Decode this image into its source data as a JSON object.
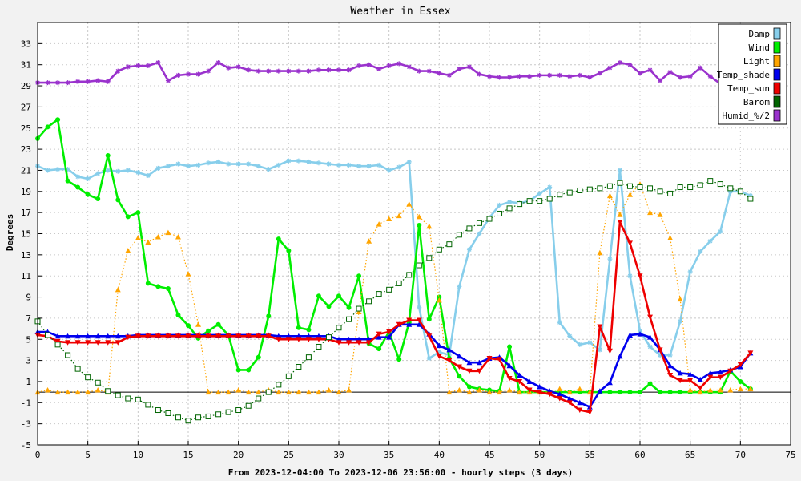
{
  "chart_data": {
    "type": "line",
    "title": "Weather in Essex",
    "xlabel": "From 2023-12-04:00 To 2023-12-06 23:56:00 - hourly steps (3 days)",
    "ylabel": "Degrees",
    "xlim": [
      0,
      75
    ],
    "ylim": [
      -5,
      35
    ],
    "xticks": [
      0,
      5,
      10,
      15,
      20,
      25,
      30,
      35,
      40,
      45,
      50,
      55,
      60,
      65,
      70,
      75
    ],
    "yticks": [
      -5,
      -3,
      -1,
      1,
      3,
      5,
      7,
      9,
      11,
      13,
      15,
      17,
      19,
      21,
      23,
      25,
      27,
      29,
      31,
      33
    ],
    "grid": true,
    "legend_position": "top-right",
    "series": [
      {
        "name": "Damp",
        "color": "#87ceeb",
        "style": "line",
        "marker": "star",
        "y": [
          21.4,
          21.0,
          21.1,
          21.1,
          20.4,
          20.2,
          20.7,
          21.0,
          20.9,
          21.0,
          20.8,
          20.5,
          21.2,
          21.4,
          21.6,
          21.4,
          21.5,
          21.7,
          21.8,
          21.6,
          21.6,
          21.6,
          21.4,
          21.1,
          21.5,
          21.9,
          21.9,
          21.8,
          21.7,
          21.6,
          21.5,
          21.5,
          21.4,
          21.4,
          21.5,
          21.0,
          21.3,
          21.8,
          8.0,
          3.2,
          3.8,
          3.5,
          10.0,
          13.5,
          15.0,
          16.5,
          17.7,
          18.0,
          17.9,
          18.1,
          18.8,
          19.4,
          6.6,
          5.3,
          4.5,
          4.7,
          4.0,
          12.6,
          21.0,
          11.0,
          5.8,
          4.3,
          3.5,
          3.5,
          6.7,
          11.4,
          13.3,
          14.3,
          15.2,
          19.0,
          19.0,
          18.6
        ]
      },
      {
        "name": "Wind",
        "color": "#00ee00",
        "style": "line",
        "marker": "dot",
        "y": [
          24.0,
          25.1,
          25.8,
          20.0,
          19.4,
          18.7,
          18.3,
          22.4,
          18.2,
          16.6,
          17.0,
          10.3,
          10.0,
          9.8,
          7.3,
          6.3,
          5.1,
          5.8,
          6.4,
          5.4,
          2.1,
          2.1,
          3.3,
          7.2,
          14.5,
          13.4,
          6.1,
          5.9,
          9.1,
          8.1,
          9.1,
          8.0,
          11.0,
          4.6,
          4.1,
          5.7,
          3.1,
          6.6,
          15.8,
          6.9,
          9.0,
          3.2,
          1.5,
          0.5,
          0.3,
          0.2,
          0.1,
          4.3,
          0.0,
          0.0,
          0.0,
          0.0,
          0.0,
          0.0,
          0.0,
          0.0,
          0.0,
          0.0,
          0.0,
          0.0,
          0.0,
          0.8,
          0.0,
          0.0,
          0.0,
          0.0,
          0.0,
          0.0,
          0.0,
          2.0,
          1.0,
          0.3
        ]
      },
      {
        "name": "Light",
        "color": "#ffa500",
        "style": "dotted",
        "marker": "triangle",
        "y": [
          0.0,
          0.2,
          0.0,
          0.0,
          0.0,
          0.0,
          0.2,
          0.0,
          9.7,
          13.4,
          14.6,
          14.2,
          14.7,
          15.1,
          14.7,
          11.2,
          6.4,
          0.0,
          0.0,
          0.0,
          0.2,
          0.0,
          0.0,
          0.2,
          0.0,
          0.0,
          0.0,
          0.0,
          0.0,
          0.2,
          0.0,
          0.2,
          7.6,
          14.3,
          15.9,
          16.4,
          16.7,
          17.8,
          16.6,
          15.7,
          8.7,
          0.0,
          0.2,
          0.0,
          0.2,
          0.0,
          0.0,
          0.2,
          0.0,
          0.0,
          0.0,
          0.0,
          0.3,
          0.0,
          0.3,
          0.0,
          13.2,
          18.6,
          16.8,
          18.7,
          19.7,
          17.0,
          16.8,
          14.6,
          8.8,
          0.2,
          0.0,
          0.2,
          0.2,
          0.2,
          0.3,
          0.3
        ]
      },
      {
        "name": "Temp_shade",
        "color": "#0000ee",
        "style": "line",
        "marker": "triangle",
        "y": [
          5.7,
          5.7,
          5.3,
          5.3,
          5.3,
          5.3,
          5.3,
          5.3,
          5.3,
          5.3,
          5.4,
          5.4,
          5.4,
          5.4,
          5.4,
          5.4,
          5.4,
          5.4,
          5.4,
          5.4,
          5.4,
          5.4,
          5.4,
          5.4,
          5.3,
          5.3,
          5.3,
          5.3,
          5.3,
          5.3,
          5.0,
          5.0,
          5.0,
          5.0,
          5.2,
          5.2,
          6.4,
          6.4,
          6.4,
          5.5,
          4.4,
          4.0,
          3.4,
          2.8,
          2.8,
          3.2,
          3.3,
          2.5,
          1.6,
          1.0,
          0.5,
          0.1,
          -0.2,
          -0.6,
          -1.0,
          -1.4,
          0.1,
          0.9,
          3.4,
          5.4,
          5.5,
          5.2,
          4.0,
          2.5,
          1.8,
          1.7,
          1.2,
          1.8,
          1.9,
          2.1,
          2.4,
          3.7
        ]
      },
      {
        "name": "Temp_sun",
        "color": "#ee0000",
        "style": "line",
        "marker": "triangle-down",
        "y": [
          5.4,
          5.3,
          4.8,
          4.7,
          4.7,
          4.7,
          4.7,
          4.7,
          4.7,
          5.2,
          5.3,
          5.3,
          5.3,
          5.3,
          5.3,
          5.3,
          5.3,
          5.3,
          5.3,
          5.3,
          5.3,
          5.3,
          5.3,
          5.3,
          5.0,
          5.0,
          5.0,
          5.0,
          5.0,
          5.0,
          4.7,
          4.7,
          4.7,
          4.7,
          5.5,
          5.7,
          6.4,
          6.8,
          6.8,
          5.3,
          3.4,
          3.0,
          2.4,
          2.0,
          2.0,
          3.2,
          3.1,
          1.3,
          1.0,
          0.2,
          0.0,
          -0.2,
          -0.6,
          -1.0,
          -1.7,
          -1.9,
          6.2,
          3.9,
          16.1,
          14.1,
          11.0,
          7.1,
          4.0,
          1.6,
          1.1,
          1.1,
          0.4,
          1.4,
          1.4,
          2.0,
          2.6,
          3.7
        ]
      },
      {
        "name": "Barom",
        "color": "#006400",
        "style": "dotted",
        "marker": "square",
        "y": [
          6.7,
          5.4,
          4.5,
          3.5,
          2.2,
          1.4,
          0.9,
          0.1,
          -0.3,
          -0.6,
          -0.7,
          -1.2,
          -1.7,
          -2.0,
          -2.4,
          -2.7,
          -2.4,
          -2.3,
          -2.1,
          -1.9,
          -1.7,
          -1.3,
          -0.6,
          0.0,
          0.7,
          1.5,
          2.4,
          3.3,
          4.3,
          5.2,
          6.1,
          6.9,
          7.9,
          8.6,
          9.3,
          9.7,
          10.3,
          11.1,
          12.0,
          12.7,
          13.5,
          14.0,
          14.9,
          15.5,
          16.0,
          16.4,
          16.9,
          17.4,
          17.8,
          18.1,
          18.1,
          18.3,
          18.7,
          18.9,
          19.1,
          19.2,
          19.3,
          19.5,
          19.8,
          19.5,
          19.4,
          19.3,
          19.0,
          18.8,
          19.4,
          19.4,
          19.6,
          20.0,
          19.7,
          19.3,
          19.0,
          18.3
        ]
      },
      {
        "name": "Humid_%/2",
        "color": "#9a32cd",
        "style": "line",
        "marker": "star",
        "y": [
          29.3,
          29.3,
          29.3,
          29.3,
          29.4,
          29.4,
          29.5,
          29.4,
          30.4,
          30.8,
          30.9,
          30.9,
          31.2,
          29.5,
          30.0,
          30.1,
          30.1,
          30.4,
          31.2,
          30.7,
          30.8,
          30.5,
          30.4,
          30.4,
          30.4,
          30.4,
          30.4,
          30.4,
          30.5,
          30.5,
          30.5,
          30.5,
          30.9,
          31.0,
          30.6,
          30.9,
          31.1,
          30.8,
          30.4,
          30.4,
          30.2,
          30.0,
          30.6,
          30.8,
          30.1,
          29.9,
          29.8,
          29.8,
          29.9,
          29.9,
          30.0,
          30.0,
          30.0,
          29.9,
          30.0,
          29.8,
          30.2,
          30.7,
          31.2,
          31.0,
          30.2,
          30.5,
          29.5,
          30.3,
          29.8,
          29.9,
          30.7,
          29.9,
          29.2
        ]
      }
    ]
  }
}
